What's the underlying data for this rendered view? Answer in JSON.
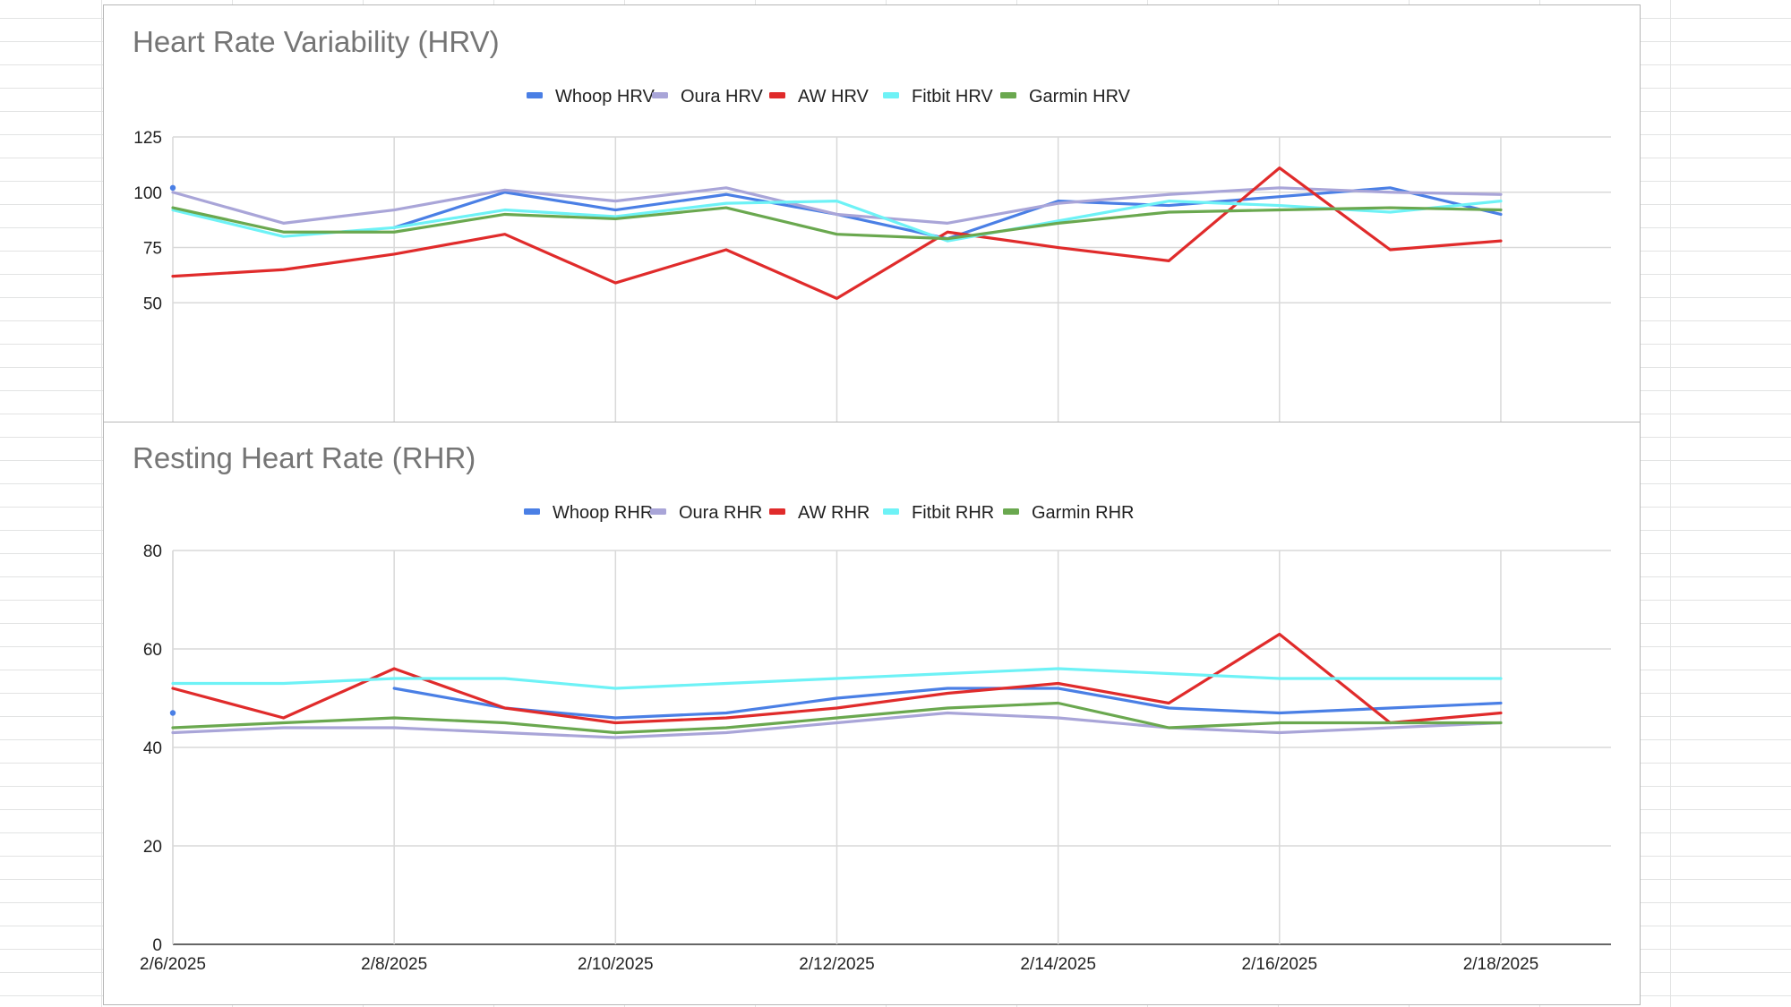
{
  "colors": {
    "whoop": "#4a7fe5",
    "oura": "#a9a5d8",
    "aw": "#e02b2b",
    "fitbit": "#6ef2f6",
    "garmin": "#6aa84f"
  },
  "chart_data": [
    {
      "type": "line",
      "title": "Heart Rate Variability (HRV)",
      "xlabel": "",
      "ylabel": "",
      "ylim": [
        40,
        125
      ],
      "yticks": [
        50,
        75,
        100,
        125
      ],
      "legend_position": "top-center",
      "grid": true,
      "x": [
        "2/6/2025",
        "2/7/2025",
        "2/8/2025",
        "2/9/2025",
        "2/10/2025",
        "2/11/2025",
        "2/12/2025",
        "2/13/2025",
        "2/14/2025",
        "2/15/2025",
        "2/16/2025",
        "2/17/2025",
        "2/18/2025"
      ],
      "xtick_labels": [],
      "series": [
        {
          "name": "Whoop HRV",
          "color_key": "whoop",
          "values": [
            102,
            null,
            84,
            100,
            92,
            99,
            90,
            79,
            96,
            94,
            98,
            102,
            90
          ]
        },
        {
          "name": "Oura HRV",
          "color_key": "oura",
          "values": [
            100,
            86,
            92,
            101,
            96,
            102,
            90,
            86,
            95,
            99,
            102,
            100,
            99
          ]
        },
        {
          "name": "AW HRV",
          "color_key": "aw",
          "values": [
            62,
            65,
            72,
            81,
            59,
            74,
            52,
            82,
            75,
            69,
            111,
            74,
            78
          ]
        },
        {
          "name": "Fitbit HRV",
          "color_key": "fitbit",
          "values": [
            92,
            80,
            84,
            92,
            89,
            95,
            96,
            78,
            87,
            96,
            94,
            91,
            96
          ]
        },
        {
          "name": "Garmin HRV",
          "color_key": "garmin",
          "values": [
            93,
            82,
            82,
            90,
            88,
            93,
            81,
            79,
            86,
            91,
            92,
            93,
            92
          ]
        }
      ]
    },
    {
      "type": "line",
      "title": "Resting Heart Rate (RHR)",
      "xlabel": "",
      "ylabel": "",
      "ylim": [
        0,
        80
      ],
      "yticks": [
        0,
        20,
        40,
        60,
        80
      ],
      "legend_position": "top-center",
      "grid": true,
      "x": [
        "2/6/2025",
        "2/7/2025",
        "2/8/2025",
        "2/9/2025",
        "2/10/2025",
        "2/11/2025",
        "2/12/2025",
        "2/13/2025",
        "2/14/2025",
        "2/15/2025",
        "2/16/2025",
        "2/17/2025",
        "2/18/2025"
      ],
      "xtick_labels": [
        "2/6/2025",
        "2/8/2025",
        "2/10/2025",
        "2/12/2025",
        "2/14/2025",
        "2/16/2025",
        "2/18/2025"
      ],
      "series": [
        {
          "name": "Whoop RHR",
          "color_key": "whoop",
          "values": [
            47,
            null,
            52,
            48,
            46,
            47,
            50,
            52,
            52,
            48,
            47,
            48,
            49
          ]
        },
        {
          "name": "Oura RHR",
          "color_key": "oura",
          "values": [
            43,
            44,
            44,
            43,
            42,
            43,
            45,
            47,
            46,
            44,
            43,
            44,
            45
          ]
        },
        {
          "name": "AW RHR",
          "color_key": "aw",
          "values": [
            52,
            46,
            56,
            48,
            45,
            46,
            48,
            51,
            53,
            49,
            63,
            45,
            47
          ]
        },
        {
          "name": "Fitbit RHR",
          "color_key": "fitbit",
          "values": [
            53,
            53,
            54,
            54,
            52,
            53,
            54,
            55,
            56,
            55,
            54,
            54,
            54
          ]
        },
        {
          "name": "Garmin RHR",
          "color_key": "garmin",
          "values": [
            44,
            45,
            46,
            45,
            43,
            44,
            46,
            48,
            49,
            44,
            45,
            45,
            45
          ]
        }
      ]
    }
  ]
}
